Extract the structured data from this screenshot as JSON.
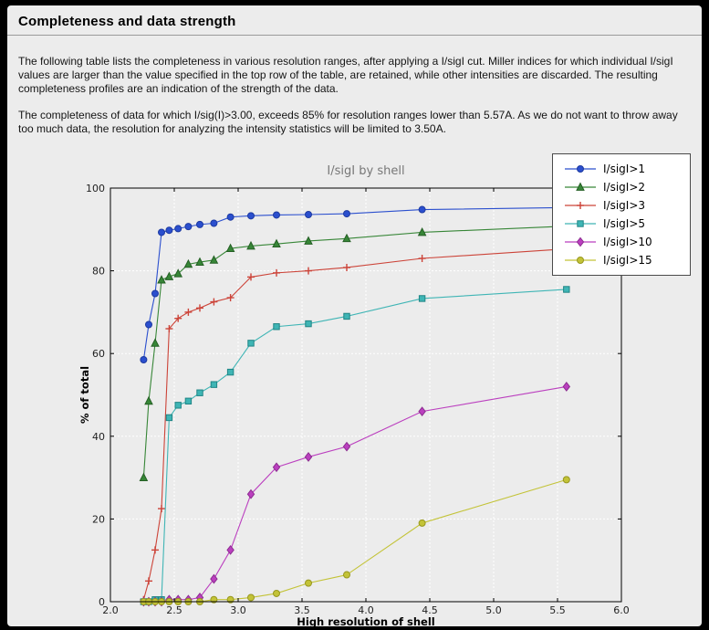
{
  "header": {
    "title": "Completeness and data strength"
  },
  "intro": {
    "p1": "The following table lists the completeness in various resolution ranges, after applying a I/sigI cut. Miller indices for which individual I/sigI values are larger than the value specified in the top row of the table, are retained, while other intensities are discarded. The resulting completeness profiles are an indication of the strength of the data.",
    "p2": "The completeness of data for which I/sig(I)>3.00, exceeds 85% for resolution ranges lower than 5.57A. As we do not want to throw away too much data, the resolution for analyzing the intensity statistics will be limited to 3.50A."
  },
  "theme": {
    "frame_bg": "#000000",
    "panel_bg": "#ececec",
    "divider": "#9a9a9a",
    "legend_bg": "#ffffff",
    "legend_border": "#4a4a4a"
  },
  "chart_data": {
    "type": "line",
    "title": "I/sigI by shell",
    "xlabel": "High resolution of shell",
    "ylabel": "% of total",
    "xlim": [
      2.0,
      6.0
    ],
    "ylim": [
      0,
      100
    ],
    "xticks": [
      2.0,
      2.5,
      3.0,
      3.5,
      4.0,
      4.5,
      5.0,
      5.5,
      6.0
    ],
    "yticks": [
      0,
      20,
      40,
      60,
      80,
      100
    ],
    "grid": {
      "color": "#ffffff",
      "style": "dashed",
      "on": true
    },
    "legend_position": "upper right",
    "colors": {
      "plot_bg": "#ececec",
      "frame": "#000000",
      "title": "#777777",
      "tick_label": "#222222",
      "axis_label": "#000000"
    },
    "x": [
      2.26,
      2.3,
      2.35,
      2.4,
      2.46,
      2.53,
      2.61,
      2.7,
      2.81,
      2.94,
      3.1,
      3.3,
      3.55,
      3.85,
      4.44,
      5.57
    ],
    "series": [
      {
        "name": "I/sigI>1",
        "color": "#2b4fce",
        "edge": "#1d3aa0",
        "marker": "circle",
        "values": [
          58.5,
          67,
          74.5,
          89.3,
          89.8,
          90.2,
          90.7,
          91.2,
          91.5,
          93,
          93.3,
          93.5,
          93.6,
          93.8,
          94.8,
          95.3
        ]
      },
      {
        "name": "I/sigI>2",
        "color": "#378637",
        "edge": "#245f24",
        "marker": "triangle",
        "values": [
          30,
          48.5,
          62.5,
          77.8,
          78.6,
          79.3,
          81.6,
          82.1,
          82.6,
          85.4,
          86,
          86.5,
          87.2,
          87.8,
          89.3,
          90.8
        ]
      },
      {
        "name": "I/sigI>3",
        "color": "#cc4338",
        "edge": "#a83128",
        "marker": "plus",
        "values": [
          0.5,
          5,
          12.5,
          22.5,
          66,
          68.5,
          70,
          71,
          72.5,
          73.5,
          78.5,
          79.5,
          80,
          80.8,
          83,
          85.3
        ]
      },
      {
        "name": "I/sigI>5",
        "color": "#3fb5b5",
        "edge": "#1f8585",
        "marker": "square",
        "values": [
          0,
          0,
          0.5,
          0.5,
          44.5,
          47.5,
          48.5,
          50.5,
          52.5,
          55.5,
          62.5,
          66.5,
          67.2,
          69,
          73.3,
          75.5
        ]
      },
      {
        "name": "I/sigI>10",
        "color": "#bb3fbf",
        "edge": "#8c2d90",
        "marker": "diamond",
        "values": [
          0,
          0,
          0,
          0,
          0.5,
          0.5,
          0.5,
          1,
          5.5,
          12.5,
          26,
          32.5,
          35,
          37.5,
          46,
          52
        ]
      },
      {
        "name": "I/sigI>15",
        "color": "#c3c337",
        "edge": "#97971f",
        "marker": "circle",
        "values": [
          0,
          0,
          0,
          0,
          0,
          0,
          0,
          0,
          0.5,
          0.5,
          1,
          2,
          4.5,
          6.5,
          19,
          29.5
        ]
      }
    ]
  }
}
